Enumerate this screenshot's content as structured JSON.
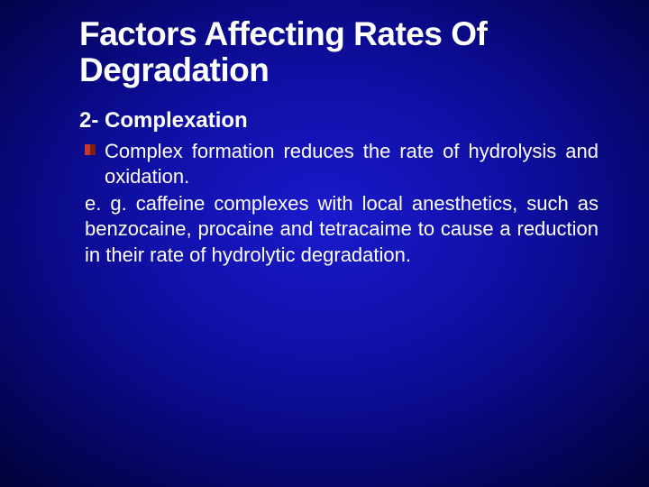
{
  "slide": {
    "title": "Factors Affecting Rates Of Degradation",
    "title_fontsize": 37,
    "title_color": "#ffffff",
    "subheading": "2- Complexation",
    "subheading_fontsize": 24,
    "bullet_text": "Complex formation reduces the rate of hydrolysis and oxidation.",
    "example_text": "e. g. caffeine complexes with local anesthetics, such as benzocaine, procaine and tetracaime to cause a reduction in their rate of hydrolytic degradation.",
    "body_fontsize": 22,
    "body_color": "#ffffff",
    "bullet_marker_colors": {
      "left": "#c43a2e",
      "right": "#7a1f16"
    },
    "background": {
      "type": "radial-gradient",
      "center_color": "#1a1acc",
      "edge_color": "#010130"
    },
    "font_family": "Verdana"
  }
}
